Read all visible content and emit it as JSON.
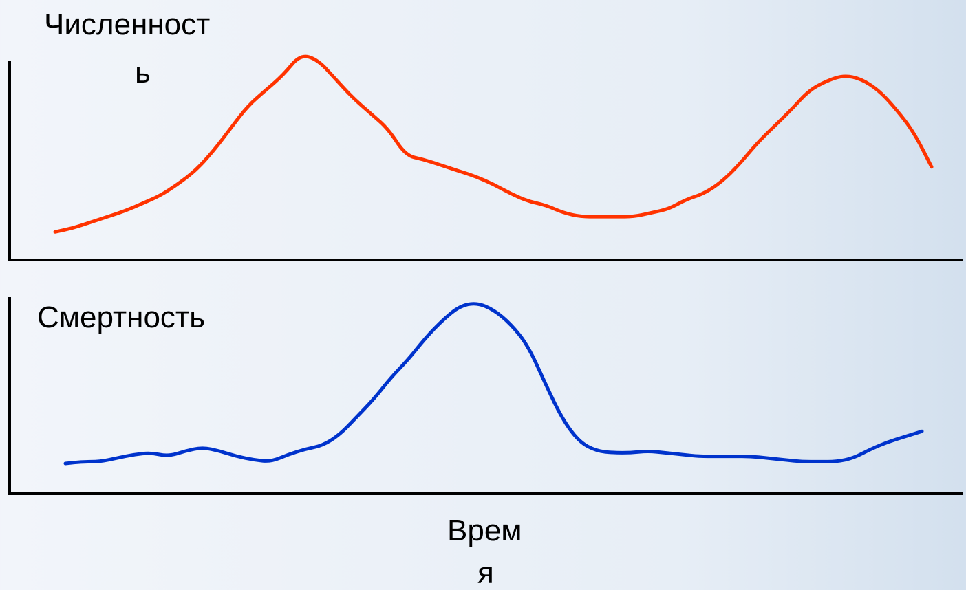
{
  "chart_data": [
    {
      "type": "line",
      "ylabel_parts": [
        "Численност",
        "ь"
      ],
      "xlabel": "",
      "color": "#ff3300",
      "x": [
        0,
        1,
        2,
        3,
        4,
        5,
        6,
        7,
        8,
        9,
        10,
        11,
        12,
        13,
        14,
        15,
        16,
        17,
        18,
        19,
        20,
        21,
        22,
        23,
        24,
        25,
        26,
        27,
        28,
        29,
        30,
        31,
        32,
        33,
        34,
        35,
        36,
        37,
        38,
        39,
        40,
        41,
        42,
        43,
        44,
        45,
        46,
        47,
        48,
        49,
        50
      ],
      "values": [
        6,
        8,
        11,
        14,
        17,
        21,
        25,
        31,
        38,
        48,
        60,
        72,
        80,
        88,
        99,
        96,
        86,
        76,
        68,
        60,
        46,
        44,
        41,
        38,
        35,
        31,
        26,
        22,
        20,
        16,
        14,
        14,
        14,
        14,
        16,
        18,
        23,
        26,
        32,
        41,
        52,
        61,
        70,
        80,
        85,
        88,
        86,
        80,
        70,
        58,
        40
      ]
    },
    {
      "type": "line",
      "ylabel": "Смертность",
      "xlabel_parts": [
        "Врем",
        "я"
      ],
      "color": "#0033cc",
      "x": [
        0,
        1,
        2,
        3,
        4,
        5,
        6,
        7,
        8,
        9,
        10,
        11,
        12,
        13,
        14,
        15,
        16,
        17,
        18,
        19,
        20,
        21,
        22,
        23,
        24,
        25,
        26,
        27,
        28,
        29,
        30,
        31,
        32,
        33,
        34,
        35,
        36,
        37,
        38,
        39,
        40,
        41,
        42,
        43,
        44,
        45,
        46,
        47,
        48,
        49,
        50
      ],
      "values": [
        10,
        11,
        11,
        13,
        15,
        16,
        14,
        17,
        19,
        17,
        14,
        12,
        11,
        15,
        18,
        20,
        26,
        36,
        46,
        58,
        68,
        80,
        90,
        98,
        100,
        96,
        88,
        76,
        55,
        35,
        22,
        17,
        16,
        16,
        17,
        16,
        15,
        14,
        14,
        14,
        14,
        13,
        12,
        11,
        11,
        11,
        13,
        18,
        22,
        25,
        28
      ]
    }
  ]
}
